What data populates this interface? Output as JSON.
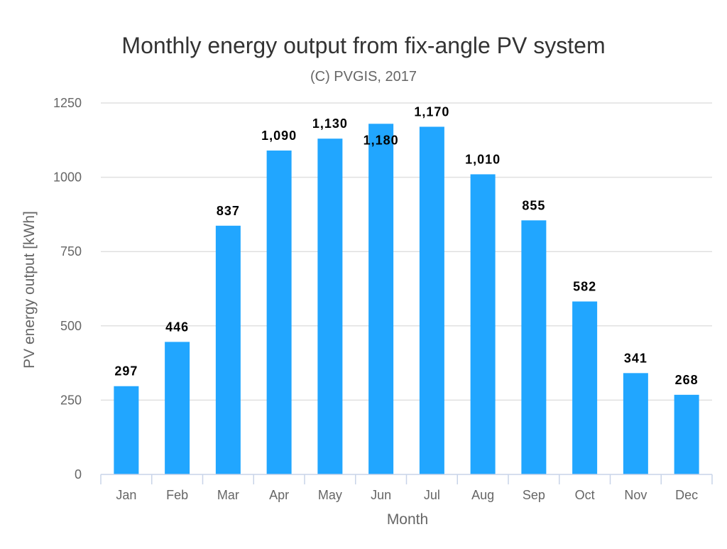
{
  "chart_data": {
    "type": "bar",
    "title": "Monthly energy output from fix-angle PV system",
    "subtitle": "(C) PVGIS, 2017",
    "xlabel": "Month",
    "ylabel": "PV energy output [kWh]",
    "categories": [
      "Jan",
      "Feb",
      "Mar",
      "Apr",
      "May",
      "Jun",
      "Jul",
      "Aug",
      "Sep",
      "Oct",
      "Nov",
      "Dec"
    ],
    "values": [
      297,
      446,
      837,
      1090,
      1130,
      1180,
      1170,
      1010,
      855,
      582,
      341,
      268
    ],
    "data_labels": [
      "297",
      "446",
      "837",
      "1,090",
      "1,130",
      "1,180",
      "1,170",
      "1,010",
      "855",
      "582",
      "341",
      "268"
    ],
    "ylim": [
      0,
      1250
    ],
    "yticks": [
      0,
      250,
      500,
      750,
      1000,
      1250
    ],
    "grid": true,
    "bar_color": "#21a6ff"
  }
}
